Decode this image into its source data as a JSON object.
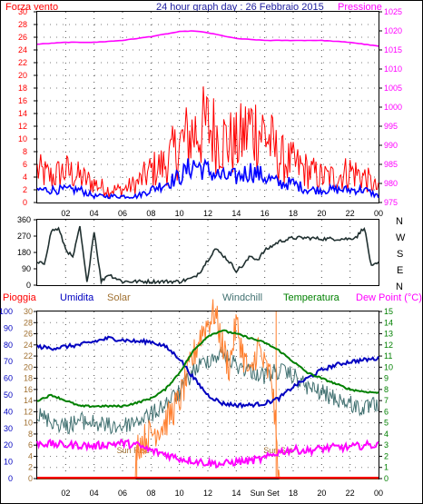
{
  "top_panel": {
    "title": "24 hour graph day : 26 Febbraio 2015",
    "left_label": "Forza vento",
    "right_label": "Pressione"
  },
  "middle_panel": {
    "compass_labels": [
      "N",
      "W",
      "S",
      "E",
      "N"
    ]
  },
  "bottom_panel": {
    "legend": [
      {
        "label": "Pioggia",
        "color": "#ff0000"
      },
      {
        "label": "Umidita",
        "color": "#0000c0"
      },
      {
        "label": "Solar",
        "color": "#a07030"
      },
      {
        "label": "Windchill",
        "color": "#407070"
      },
      {
        "label": "Temperatura",
        "color": "#008000"
      },
      {
        "label": "Dew Point (°C)",
        "color": "#ff00ff"
      }
    ],
    "annotations": {
      "sunrise": "Sun Rise",
      "sunset": "Sun Set"
    }
  },
  "x_ticks": [
    "02",
    "04",
    "06",
    "08",
    "10",
    "12",
    "14",
    "16",
    "18",
    "20",
    "22",
    "00"
  ],
  "x_ticks_bottom": [
    "02",
    "04",
    "06",
    "08",
    "10",
    "12",
    "14",
    "Sun Set",
    "18",
    "20",
    "22",
    "00"
  ],
  "colors": {
    "wind_gust": "#ff0000",
    "wind_avg": "#0000ff",
    "pressure": "#ff00ff",
    "direction": "#203030",
    "humidity": "#0000c0",
    "temperature": "#008000",
    "windchill": "#407070",
    "solar": "#ff8030",
    "dewpoint": "#ff00ff",
    "rain": "#ff0000",
    "grid": "#000000"
  },
  "chart_data": [
    {
      "type": "line",
      "x_unit": "hour of day",
      "y_left": {
        "label": "Forza vento",
        "ticks": [
          "0",
          "2",
          "4",
          "6",
          "8",
          "10",
          "12",
          "14",
          "16",
          "18",
          "20",
          "22",
          "24",
          "26",
          "28",
          "30"
        ],
        "range": [
          0,
          30
        ]
      },
      "y_right": {
        "label": "Pressione",
        "ticks": [
          "975",
          "980",
          "985",
          "990",
          "995",
          "1000",
          "1005",
          "1010",
          "1015",
          "1020",
          "1025"
        ],
        "range": [
          975,
          1025
        ]
      },
      "series": [
        {
          "name": "Forza vento",
          "role": "gust",
          "x": [
            0,
            1,
            2,
            3,
            4,
            5,
            6,
            7,
            8,
            9,
            10,
            11,
            12,
            13,
            14,
            15,
            16,
            17,
            18,
            19,
            20,
            21,
            22,
            23,
            24
          ],
          "values": [
            5,
            4,
            5,
            4,
            3,
            2,
            2,
            3,
            5,
            6,
            9,
            11,
            12,
            10,
            9,
            12,
            11,
            7,
            6,
            5,
            4,
            4,
            5,
            4,
            2
          ]
        },
        {
          "name": "Forza vento",
          "role": "average",
          "x": [
            0,
            1,
            2,
            3,
            4,
            5,
            6,
            7,
            8,
            9,
            10,
            11,
            12,
            13,
            14,
            15,
            16,
            17,
            18,
            19,
            20,
            21,
            22,
            23,
            24
          ],
          "values": [
            2,
            2,
            2,
            2,
            1,
            1,
            1,
            1,
            2,
            3,
            4,
            6,
            5,
            4,
            4,
            5,
            4,
            3,
            3,
            2,
            2,
            2,
            2,
            2,
            1
          ]
        },
        {
          "name": "Pressione",
          "x": [
            0,
            2,
            4,
            6,
            8,
            10,
            11,
            12,
            14,
            16,
            18,
            20,
            22,
            24
          ],
          "values": [
            1016.5,
            1017,
            1017,
            1017.5,
            1018.5,
            1019.8,
            1020,
            1019.5,
            1018,
            1017.5,
            1017.5,
            1017.5,
            1017,
            1016
          ]
        }
      ]
    },
    {
      "type": "line",
      "x_unit": "hour of day",
      "y_left": {
        "label": "",
        "ticks": [
          "0",
          "90",
          "180",
          "270",
          "360"
        ],
        "range": [
          0,
          360
        ]
      },
      "series": [
        {
          "name": "Direzione",
          "x": [
            0,
            0.5,
            1,
            1.5,
            2,
            2.5,
            3,
            3.5,
            4,
            4.5,
            5,
            5.5,
            6,
            8,
            10,
            11,
            11.5,
            12,
            12.5,
            13,
            13.5,
            14,
            14.5,
            15,
            15.5,
            16,
            17,
            18,
            19,
            20,
            21,
            22,
            22.5,
            23,
            23.5,
            24
          ],
          "values": [
            120,
            120,
            300,
            310,
            200,
            150,
            320,
            10,
            300,
            20,
            60,
            40,
            20,
            20,
            20,
            40,
            80,
            140,
            200,
            170,
            130,
            80,
            110,
            160,
            140,
            190,
            240,
            260,
            260,
            255,
            255,
            255,
            270,
            320,
            100,
            120
          ]
        }
      ]
    },
    {
      "type": "line",
      "x_unit": "hour of day",
      "y_humidity": {
        "ticks": [
          "0",
          "10",
          "20",
          "30",
          "40",
          "50",
          "60",
          "70",
          "80",
          "90",
          "100"
        ],
        "range": [
          0,
          100
        ]
      },
      "y_solar": {
        "ticks": [
          "0",
          "2",
          "4",
          "6",
          "8",
          "10",
          "12",
          "14",
          "16",
          "18",
          "20",
          "22",
          "24",
          "26",
          "28",
          "30"
        ],
        "range": [
          0,
          30
        ]
      },
      "y_temp": {
        "ticks": [
          "0",
          "1",
          "2",
          "3",
          "4",
          "5",
          "6",
          "7",
          "8",
          "9",
          "10",
          "11",
          "12",
          "13",
          "14",
          "15"
        ],
        "range": [
          0,
          15
        ]
      },
      "series": [
        {
          "name": "Umidita",
          "axis": "humidity",
          "x": [
            0,
            1,
            2,
            3,
            4,
            5,
            6,
            7,
            8,
            9,
            10,
            11,
            12,
            13,
            14,
            15,
            16,
            17,
            18,
            19,
            20,
            21,
            22,
            23,
            24
          ],
          "values": [
            79,
            78,
            79,
            80,
            82,
            84,
            83,
            82,
            82,
            79,
            72,
            60,
            50,
            45,
            44,
            44,
            45,
            48,
            55,
            60,
            65,
            68,
            70,
            71,
            72
          ]
        },
        {
          "name": "Temperatura",
          "axis": "temp",
          "x": [
            0,
            1,
            2,
            3,
            4,
            5,
            6,
            7,
            8,
            9,
            10,
            11,
            12,
            13,
            14,
            15,
            16,
            17,
            18,
            19,
            20,
            21,
            22,
            23,
            24
          ],
          "values": [
            7,
            7.5,
            7,
            6.5,
            6.5,
            6.5,
            6.5,
            6.8,
            7.2,
            8,
            9.5,
            11.5,
            12.8,
            13.3,
            13,
            12.6,
            12.2,
            11.5,
            10.5,
            9.5,
            9,
            8.5,
            8,
            7.8,
            7.7
          ]
        },
        {
          "name": "Windchill",
          "axis": "temp",
          "x": [
            0,
            1,
            2,
            3,
            4,
            5,
            6,
            7,
            8,
            9,
            10,
            11,
            12,
            13,
            14,
            15,
            16,
            17,
            18,
            19,
            20,
            21,
            22,
            23,
            24
          ],
          "values": [
            6.5,
            6,
            5.5,
            6,
            5.8,
            5.5,
            5.5,
            6,
            6.5,
            7.5,
            8.5,
            10.5,
            11.5,
            12,
            11,
            10.5,
            10,
            10.5,
            10,
            9,
            8.5,
            8,
            7.5,
            7,
            7.5
          ]
        },
        {
          "name": "Solar",
          "axis": "solar",
          "x": [
            0,
            6.9,
            7,
            8,
            9,
            10,
            10.5,
            11,
            11.5,
            12,
            12.5,
            13,
            13.5,
            14,
            14.5,
            15,
            15.5,
            16,
            16.5,
            17,
            18,
            20,
            22,
            24
          ],
          "values": [
            0,
            0,
            6,
            8,
            10,
            14,
            18,
            22,
            26,
            28,
            30,
            24,
            20,
            28,
            22,
            18,
            24,
            20,
            18,
            0,
            0,
            0,
            0,
            0
          ]
        },
        {
          "name": "Dew Point (°C)",
          "axis": "temp",
          "x": [
            0,
            1,
            2,
            3,
            4,
            5,
            6,
            7,
            8,
            9,
            10,
            11,
            12,
            13,
            14,
            15,
            16,
            17,
            18,
            19,
            20,
            21,
            22,
            23,
            24
          ],
          "values": [
            3.2,
            3.1,
            3.0,
            3.0,
            2.9,
            3.1,
            3.2,
            3.0,
            2.5,
            2.2,
            1.8,
            1.6,
            1.4,
            1.3,
            1.5,
            1.6,
            1.8,
            2.4,
            2.6,
            2.5,
            2.7,
            2.8,
            2.8,
            3.0,
            3.0
          ]
        },
        {
          "name": "Pioggia",
          "axis": "rain",
          "x": [
            0,
            24
          ],
          "values": [
            0,
            0
          ]
        }
      ],
      "sunrise_hour": 7,
      "sunset_hour": 16.8
    }
  ]
}
